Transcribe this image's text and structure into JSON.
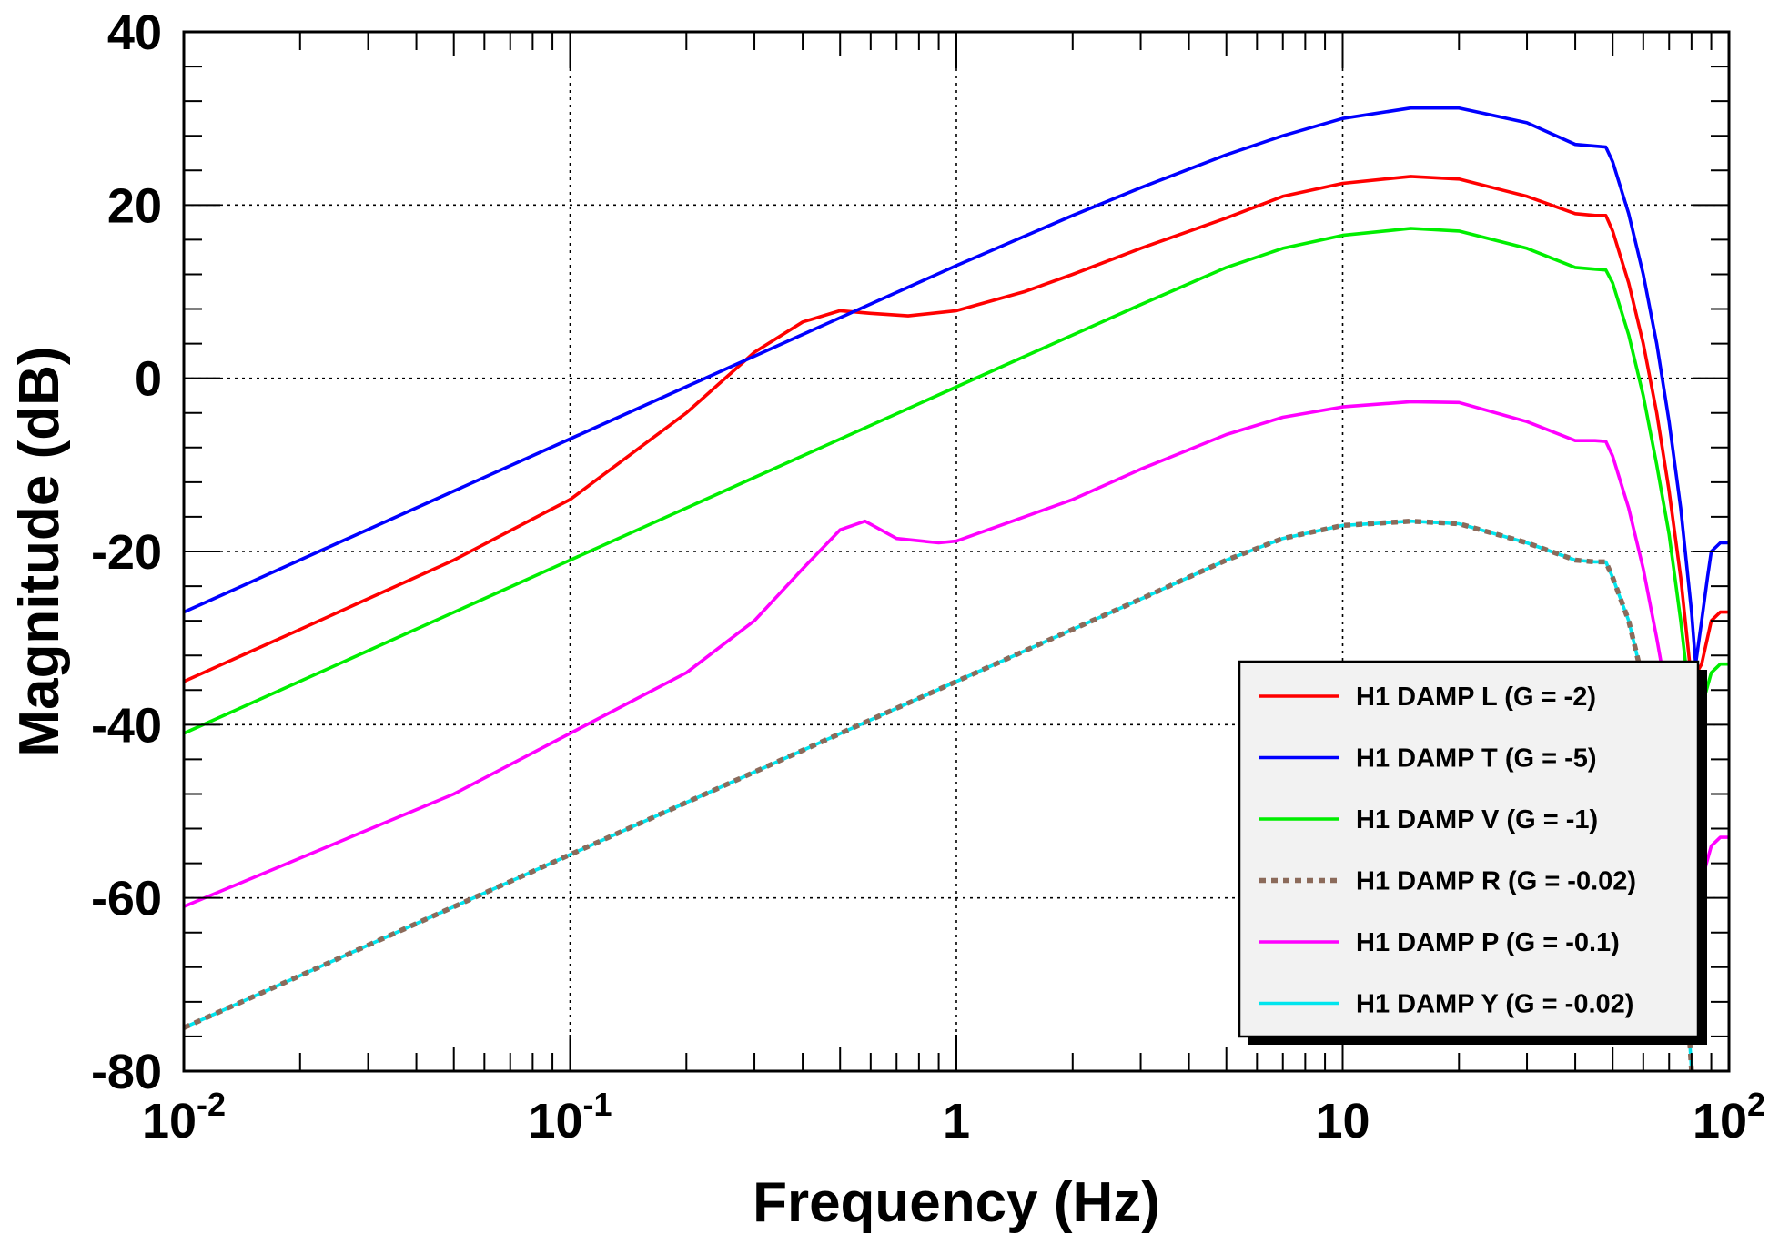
{
  "chart_data": {
    "type": "line",
    "xlabel": "Frequency (Hz)",
    "ylabel": "Magnitude (dB)",
    "xscale": "log",
    "xlim": [
      0.01,
      100
    ],
    "ylim": [
      -80,
      40
    ],
    "grid": true,
    "legend_position": "bottom-right",
    "x_ticks": [
      {
        "value": 0.01,
        "base": "10",
        "exp": "-2"
      },
      {
        "value": 0.1,
        "base": "10",
        "exp": "-1"
      },
      {
        "value": 1,
        "base": "1",
        "exp": ""
      },
      {
        "value": 10,
        "base": "10",
        "exp": ""
      },
      {
        "value": 100,
        "base": "10",
        "exp": "2"
      }
    ],
    "y_ticks": [
      {
        "value": 40,
        "label": "40"
      },
      {
        "value": 20,
        "label": "20"
      },
      {
        "value": 0,
        "label": "0"
      },
      {
        "value": -20,
        "label": "-20"
      },
      {
        "value": -40,
        "label": "-40"
      },
      {
        "value": -60,
        "label": "-60"
      },
      {
        "value": -80,
        "label": "-80"
      }
    ],
    "series": [
      {
        "name": "H1 DAMP L (G = -2)",
        "color": "#ff0000",
        "dashed": false,
        "x": [
          0.01,
          0.02,
          0.05,
          0.1,
          0.2,
          0.3,
          0.4,
          0.5,
          0.6,
          0.75,
          1,
          1.5,
          2,
          3,
          5,
          7,
          10,
          15,
          20,
          30,
          40,
          45,
          48,
          50,
          55,
          60,
          65,
          70,
          75,
          80,
          85,
          90,
          95,
          100
        ],
        "y": [
          -35,
          -29,
          -21,
          -14,
          -4,
          3,
          6.5,
          7.8,
          7.5,
          7.2,
          7.8,
          10,
          12,
          15,
          18.5,
          21,
          22.5,
          23.3,
          23,
          21,
          19,
          18.8,
          18.8,
          17,
          11,
          4,
          -4,
          -13,
          -23,
          -35,
          -33,
          -28,
          -27,
          -27
        ]
      },
      {
        "name": "H1 DAMP T (G = -5)",
        "color": "#0000ff",
        "dashed": false,
        "x": [
          0.01,
          0.1,
          0.5,
          1,
          2,
          3,
          5,
          7,
          10,
          15,
          20,
          30,
          40,
          45,
          48,
          50,
          55,
          60,
          65,
          70,
          75,
          80,
          82,
          85,
          88,
          90,
          95,
          100
        ],
        "y": [
          -27,
          -7,
          7,
          13,
          18.8,
          22,
          25.8,
          28,
          30,
          31.2,
          31.2,
          29.5,
          27,
          26.8,
          26.7,
          25,
          19,
          12,
          4,
          -5,
          -15,
          -27,
          -33,
          -28,
          -23,
          -20,
          -19,
          -19
        ]
      },
      {
        "name": "H1 DAMP V (G = -1)",
        "color": "#00ee00",
        "dashed": false,
        "x": [
          0.01,
          0.1,
          1,
          2,
          3,
          5,
          7,
          10,
          15,
          20,
          30,
          40,
          45,
          48,
          50,
          55,
          60,
          65,
          70,
          75,
          80,
          85,
          90,
          95,
          100
        ],
        "y": [
          -41,
          -21,
          -1,
          5,
          8.5,
          12.8,
          15,
          16.5,
          17.3,
          17,
          15,
          12.8,
          12.6,
          12.5,
          11,
          5,
          -2,
          -10,
          -18,
          -28,
          -39,
          -38,
          -34,
          -33,
          -33
        ]
      },
      {
        "name": "H1 DAMP R (G = -0.02)",
        "color": "#8b6a5a",
        "dashed": true,
        "x": [
          0.01,
          0.1,
          1,
          2,
          3,
          5,
          7,
          10,
          15,
          20,
          30,
          40,
          45,
          48,
          50,
          55,
          60,
          65,
          70,
          75,
          78,
          80
        ],
        "y": [
          -75,
          -55,
          -35,
          -29,
          -25.5,
          -21,
          -18.5,
          -17,
          -16.5,
          -16.8,
          -19,
          -21,
          -21.2,
          -21.2,
          -23,
          -28,
          -35,
          -43,
          -52,
          -62,
          -72,
          -80
        ]
      },
      {
        "name": "H1 DAMP P (G = -0.1)",
        "color": "#ff00ff",
        "dashed": false,
        "x": [
          0.01,
          0.05,
          0.1,
          0.2,
          0.3,
          0.4,
          0.5,
          0.58,
          0.7,
          0.9,
          1,
          1.5,
          2,
          3,
          5,
          7,
          10,
          15,
          20,
          30,
          40,
          45,
          48,
          50,
          55,
          60,
          65,
          70,
          75,
          80,
          85,
          90,
          95,
          100
        ],
        "y": [
          -61,
          -48,
          -41,
          -34,
          -28,
          -22,
          -17.5,
          -16.5,
          -18.5,
          -19,
          -18.8,
          -16,
          -14,
          -10.5,
          -6.5,
          -4.5,
          -3.3,
          -2.7,
          -2.8,
          -5,
          -7.2,
          -7.2,
          -7.3,
          -9,
          -15,
          -22,
          -30,
          -38,
          -47,
          -56,
          -58,
          -54,
          -53,
          -53
        ]
      },
      {
        "name": "H1 DAMP Y (G = -0.02)",
        "color": "#00e5ee",
        "dashed": false,
        "x": [
          0.01,
          0.1,
          1,
          2,
          3,
          5,
          7,
          10,
          15,
          20,
          30,
          40,
          45,
          48,
          50,
          55,
          60,
          65,
          70,
          75,
          78,
          80
        ],
        "y": [
          -75,
          -55,
          -35,
          -29,
          -25.5,
          -21,
          -18.5,
          -17,
          -16.5,
          -16.8,
          -19,
          -21,
          -21.2,
          -21.2,
          -23,
          -28,
          -35,
          -43,
          -52,
          -62,
          -72,
          -80
        ]
      }
    ],
    "draw_order": [
      5,
      3,
      4,
      2,
      0,
      1
    ]
  }
}
